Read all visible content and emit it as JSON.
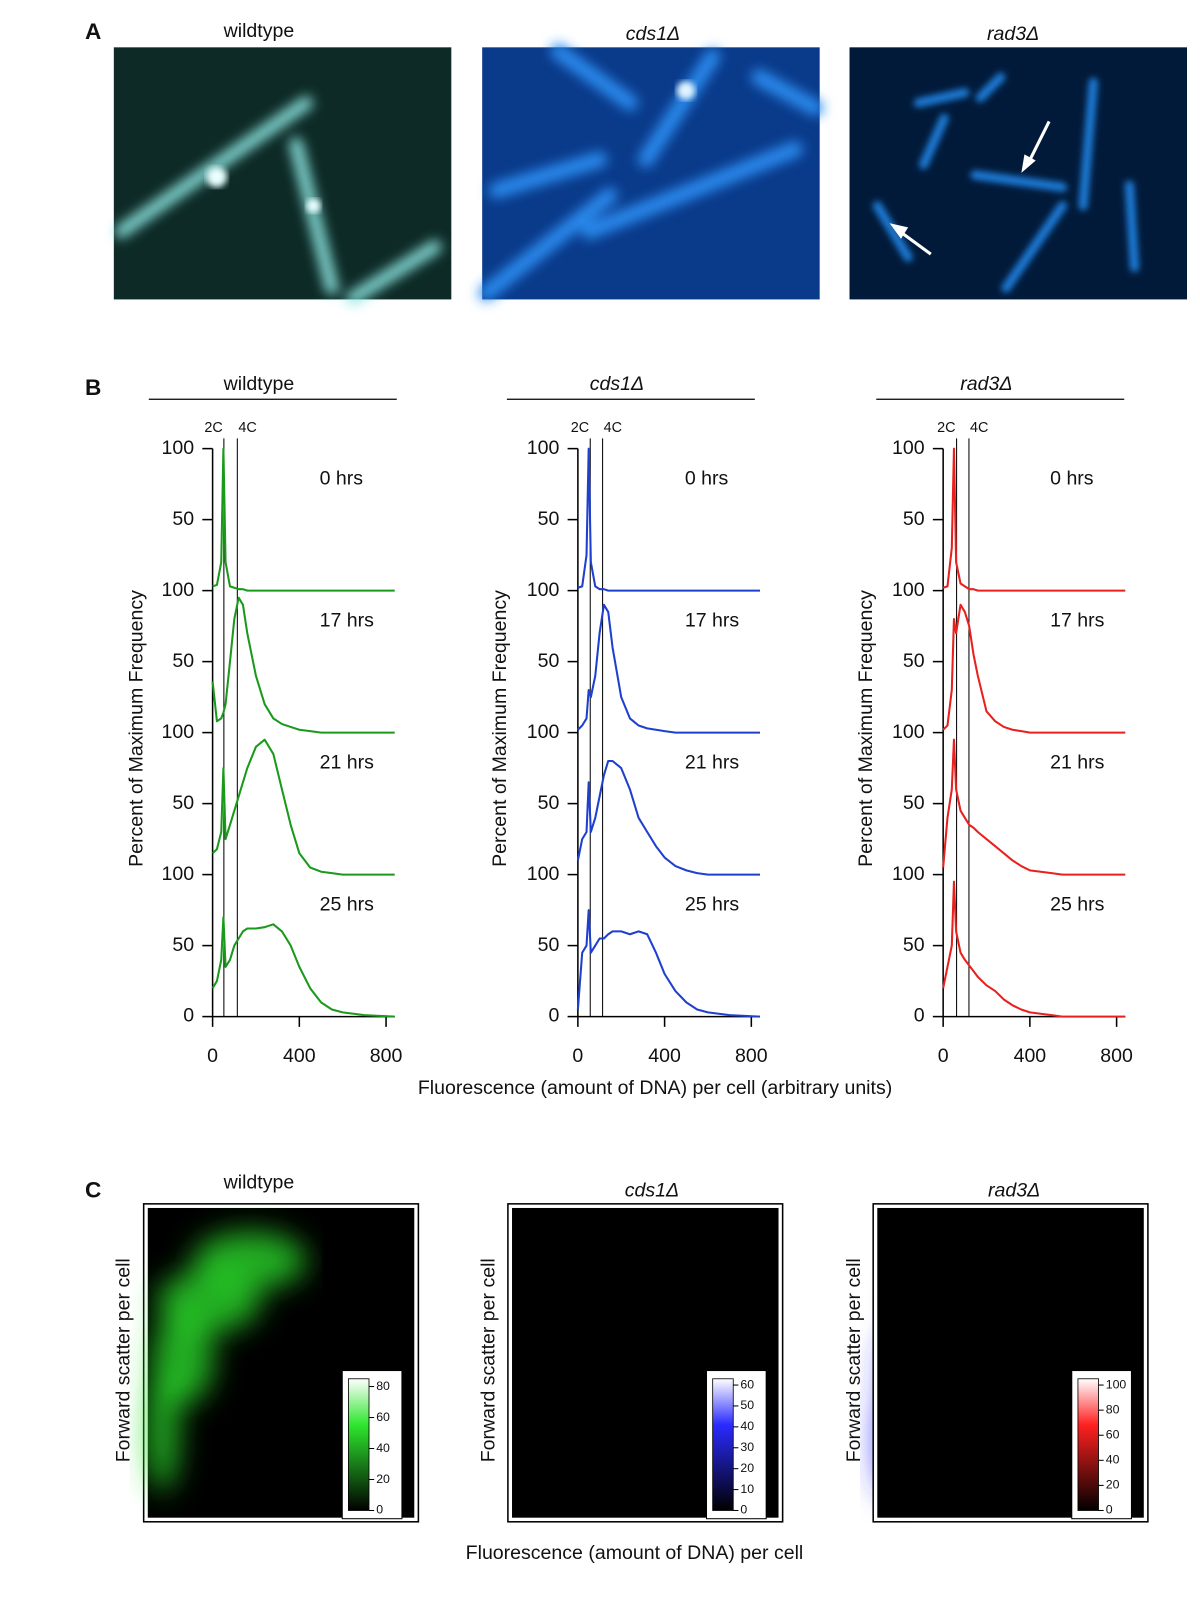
{
  "panel_labels": [
    "A",
    "B",
    "C"
  ],
  "panel_a": {
    "titles": [
      "wildtype",
      "cds1Δ",
      "rad3Δ"
    ]
  },
  "panel_b_ylabel": "Percent of Maximum Frequency",
  "panel_b_xlabel": "Fluorescence (amount of DNA) per cell (arbitrary units)",
  "chart_data": [
    {
      "type": "line",
      "title": "wildtype",
      "color": "#1a9a1a",
      "xlim": [
        0,
        840
      ],
      "xticks": [
        0,
        400,
        800
      ],
      "ylim": [
        0,
        100
      ],
      "yticks": [
        0,
        50,
        100
      ],
      "markers": [
        {
          "label": "2C",
          "value": 52
        },
        {
          "label": "4C",
          "value": 114
        }
      ],
      "x": [
        0,
        20,
        40,
        50,
        60,
        80,
        100,
        120,
        140,
        160,
        200,
        240,
        280,
        320,
        360,
        400,
        450,
        500,
        550,
        600,
        700,
        840
      ],
      "series": [
        {
          "name": "0 hrs",
          "values": [
            3,
            4,
            20,
            100,
            20,
            3,
            2,
            1,
            1,
            0,
            0,
            0,
            0,
            0,
            0,
            0,
            0,
            0,
            0,
            0,
            0,
            0
          ]
        },
        {
          "name": "17 hrs",
          "values": [
            36,
            8,
            10,
            14,
            20,
            50,
            80,
            95,
            90,
            70,
            40,
            20,
            10,
            6,
            4,
            2,
            1,
            0,
            0,
            0,
            0,
            0
          ]
        },
        {
          "name": "21 hrs",
          "values": [
            15,
            18,
            30,
            75,
            25,
            35,
            45,
            55,
            65,
            75,
            90,
            95,
            85,
            60,
            35,
            15,
            5,
            2,
            1,
            0,
            0,
            0
          ]
        },
        {
          "name": "25 hrs",
          "values": [
            20,
            25,
            40,
            70,
            35,
            40,
            50,
            55,
            60,
            62,
            62,
            63,
            65,
            60,
            50,
            35,
            20,
            10,
            5,
            3,
            1,
            0
          ]
        }
      ]
    },
    {
      "type": "line",
      "title": "cds1Δ",
      "color": "#1f3fcf",
      "xlim": [
        0,
        840
      ],
      "xticks": [
        0,
        400,
        800
      ],
      "ylim": [
        0,
        100
      ],
      "yticks": [
        0,
        50,
        100
      ],
      "markers": [
        {
          "label": "2C",
          "value": 57
        },
        {
          "label": "4C",
          "value": 114
        }
      ],
      "x": [
        0,
        20,
        40,
        50,
        60,
        80,
        100,
        120,
        140,
        160,
        200,
        240,
        280,
        320,
        360,
        400,
        450,
        500,
        550,
        600,
        700,
        840
      ],
      "series": [
        {
          "name": "0 hrs",
          "values": [
            2,
            3,
            25,
            100,
            20,
            3,
            1,
            1,
            0,
            0,
            0,
            0,
            0,
            0,
            0,
            0,
            0,
            0,
            0,
            0,
            0,
            0
          ]
        },
        {
          "name": "17 hrs",
          "values": [
            2,
            5,
            10,
            30,
            25,
            40,
            70,
            90,
            85,
            60,
            25,
            10,
            5,
            3,
            2,
            1,
            0,
            0,
            0,
            0,
            0,
            0
          ]
        },
        {
          "name": "21 hrs",
          "values": [
            10,
            25,
            30,
            65,
            30,
            40,
            55,
            70,
            80,
            80,
            75,
            60,
            40,
            30,
            20,
            12,
            6,
            3,
            1,
            0,
            0,
            0
          ]
        },
        {
          "name": "25 hrs",
          "values": [
            5,
            45,
            50,
            75,
            45,
            50,
            55,
            55,
            58,
            60,
            60,
            58,
            60,
            58,
            45,
            30,
            18,
            10,
            5,
            3,
            1,
            0
          ]
        }
      ]
    },
    {
      "type": "line",
      "title": "rad3Δ",
      "color": "#e8201e",
      "xlim": [
        0,
        840
      ],
      "xticks": [
        0,
        400,
        800
      ],
      "ylim": [
        0,
        100
      ],
      "yticks": [
        0,
        50,
        100
      ],
      "markers": [
        {
          "label": "2C",
          "value": 62
        },
        {
          "label": "4C",
          "value": 119
        }
      ],
      "x": [
        0,
        20,
        40,
        50,
        60,
        80,
        100,
        120,
        140,
        160,
        200,
        240,
        280,
        320,
        360,
        400,
        450,
        500,
        550,
        600,
        700,
        840
      ],
      "series": [
        {
          "name": "0 hrs",
          "values": [
            2,
            3,
            30,
            100,
            20,
            5,
            3,
            1,
            1,
            0,
            0,
            0,
            0,
            0,
            0,
            0,
            0,
            0,
            0,
            0,
            0,
            0
          ]
        },
        {
          "name": "17 hrs",
          "values": [
            2,
            5,
            30,
            80,
            70,
            90,
            85,
            75,
            55,
            40,
            15,
            8,
            4,
            2,
            1,
            0,
            0,
            0,
            0,
            0,
            0,
            0
          ]
        },
        {
          "name": "21 hrs",
          "values": [
            5,
            40,
            60,
            95,
            60,
            45,
            40,
            35,
            33,
            30,
            25,
            20,
            15,
            10,
            6,
            3,
            2,
            1,
            0,
            0,
            0,
            0
          ]
        },
        {
          "name": "25 hrs",
          "values": [
            20,
            35,
            50,
            95,
            60,
            45,
            40,
            36,
            32,
            28,
            22,
            18,
            12,
            8,
            5,
            3,
            2,
            1,
            0,
            0,
            0,
            0
          ]
        }
      ]
    }
  ],
  "panel_c": {
    "xlabel": "Fluorescence (amount of DNA) per cell",
    "ylabel": "Forward scatter per cell",
    "plots": [
      {
        "title": "wildtype",
        "color": "#2ee62e",
        "colorbar_lim": [
          0,
          85
        ],
        "colorbar_ticks": [
          0,
          20,
          40,
          60,
          80
        ]
      },
      {
        "title": "cds1Δ",
        "color": "#2a2aff",
        "colorbar_lim": [
          0,
          63
        ],
        "colorbar_ticks": [
          0,
          10,
          20,
          30,
          40,
          50,
          60
        ]
      },
      {
        "title": "rad3Δ",
        "color": "#ff2020",
        "colorbar_lim": [
          0,
          105
        ],
        "colorbar_ticks": [
          0,
          20,
          40,
          60,
          80,
          100
        ]
      }
    ]
  }
}
